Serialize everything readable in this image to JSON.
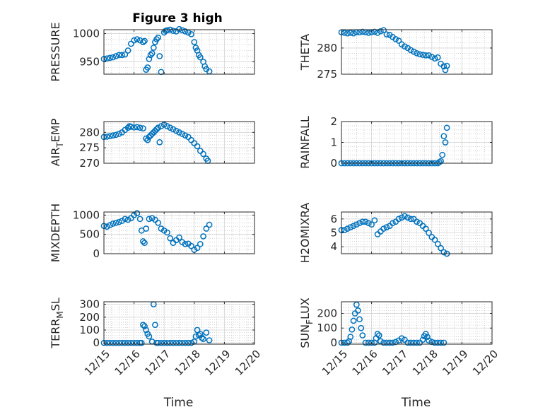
{
  "figure_title": "Figure 3 high",
  "colors": {
    "marker": "#0072BD",
    "axis": "#262626",
    "grid": "#b8b8b8"
  },
  "chart_data": [
    {
      "type": "scatter",
      "ylabel": "PRESSURE",
      "ylabel_sub": null,
      "ylabel_tail": null,
      "ylim": [
        928,
        1007
      ],
      "yticks": [
        950,
        1000
      ],
      "xticks": [
        "12/15",
        "12/16",
        "12/17",
        "12/18",
        "12/19",
        "12/20"
      ],
      "xlabel": "",
      "title": "Figure 3 high",
      "x": [
        0.0,
        0.1,
        0.2,
        0.3,
        0.4,
        0.5,
        0.6,
        0.7,
        0.8,
        0.9,
        1.0,
        1.1,
        1.2,
        1.3,
        1.35,
        1.4,
        1.45,
        1.5,
        1.55,
        1.6,
        1.65,
        1.7,
        1.75,
        1.8,
        1.85,
        1.9,
        2.0,
        2.05,
        2.1,
        2.2,
        2.3,
        2.4,
        2.5,
        2.6,
        2.7,
        2.8,
        2.9,
        3.0,
        3.05,
        3.1,
        3.15,
        3.2,
        3.3,
        3.35,
        3.4,
        3.5
      ],
      "y": [
        955,
        956,
        957,
        958,
        960,
        962,
        962,
        963,
        970,
        982,
        988,
        990,
        988,
        985,
        987,
        936,
        940,
        955,
        962,
        965,
        975,
        985,
        990,
        993,
        960,
        932,
        1002,
        1005,
        1006,
        1007,
        1005,
        1004,
        1008,
        1006,
        1004,
        1002,
        999,
        985,
        975,
        970,
        962,
        958,
        950,
        942,
        937,
        933
      ]
    },
    {
      "type": "scatter",
      "ylabel": "THETA",
      "ylabel_sub": null,
      "ylabel_tail": null,
      "ylim": [
        275,
        283.5
      ],
      "yticks": [
        275,
        280
      ],
      "xticks": [
        "12/15",
        "12/16",
        "12/17",
        "12/18",
        "12/19",
        "12/20"
      ],
      "xlabel": "",
      "title": "",
      "x": [
        0.0,
        0.1,
        0.2,
        0.3,
        0.4,
        0.5,
        0.6,
        0.7,
        0.8,
        0.9,
        1.0,
        1.1,
        1.2,
        1.3,
        1.4,
        1.5,
        1.6,
        1.7,
        1.8,
        1.9,
        2.0,
        2.1,
        2.2,
        2.3,
        2.4,
        2.5,
        2.6,
        2.7,
        2.8,
        2.9,
        3.0,
        3.1,
        3.2,
        3.3,
        3.4,
        3.45,
        3.5
      ],
      "y": [
        283.0,
        282.9,
        282.8,
        282.9,
        282.8,
        283.0,
        283.0,
        283.1,
        283.0,
        282.9,
        283.0,
        283.1,
        282.9,
        283.2,
        283.4,
        282.6,
        282.5,
        282.1,
        281.7,
        281.4,
        280.7,
        280.3,
        280.0,
        279.6,
        279.3,
        279.0,
        278.8,
        278.7,
        278.6,
        278.6,
        278.3,
        278.0,
        278.2,
        277.0,
        276.5,
        275.8,
        276.6
      ]
    },
    {
      "type": "scatter",
      "ylabel": "AIR",
      "ylabel_sub": "T",
      "ylabel_tail": "EMP",
      "ylim": [
        270,
        283.5
      ],
      "yticks": [
        270,
        275,
        280
      ],
      "xticks": [
        "12/15",
        "12/16",
        "12/17",
        "12/18",
        "12/19",
        "12/20"
      ],
      "xlabel": "",
      "title": "",
      "x": [
        0.0,
        0.1,
        0.2,
        0.3,
        0.4,
        0.5,
        0.6,
        0.7,
        0.8,
        0.85,
        0.9,
        1.0,
        1.1,
        1.2,
        1.3,
        1.4,
        1.45,
        1.5,
        1.55,
        1.6,
        1.65,
        1.7,
        1.75,
        1.8,
        1.85,
        1.9,
        2.0,
        2.1,
        2.2,
        2.3,
        2.4,
        2.5,
        2.6,
        2.7,
        2.8,
        2.9,
        3.0,
        3.1,
        3.2,
        3.3,
        3.4,
        3.45
      ],
      "y": [
        278.5,
        278.6,
        278.8,
        279.0,
        279.2,
        279.5,
        280.0,
        280.8,
        281.5,
        282.0,
        281.8,
        281.6,
        281.7,
        281.5,
        281.3,
        278.0,
        277.5,
        278.5,
        279.0,
        279.5,
        280.0,
        280.5,
        281.0,
        281.5,
        276.8,
        282.0,
        282.5,
        282.0,
        281.5,
        281.0,
        280.5,
        280.0,
        279.5,
        279.0,
        278.5,
        277.5,
        276.5,
        275.5,
        274.0,
        273.0,
        271.5,
        270.8
      ]
    },
    {
      "type": "scatter",
      "ylabel": "RAINFALL",
      "ylabel_sub": null,
      "ylabel_tail": null,
      "ylim": [
        0,
        2
      ],
      "yticks": [
        0,
        1,
        2
      ],
      "xticks": [
        "12/15",
        "12/16",
        "12/17",
        "12/18",
        "12/19",
        "12/20"
      ],
      "xlabel": "",
      "title": "",
      "x": [
        0.0,
        0.1,
        0.2,
        0.3,
        0.4,
        0.5,
        0.6,
        0.7,
        0.8,
        0.9,
        1.0,
        1.1,
        1.2,
        1.3,
        1.4,
        1.5,
        1.6,
        1.7,
        1.8,
        1.9,
        2.0,
        2.1,
        2.2,
        2.3,
        2.4,
        2.5,
        2.6,
        2.7,
        2.8,
        2.9,
        3.0,
        3.1,
        3.2,
        3.25,
        3.3,
        3.35,
        3.4,
        3.45,
        3.5
      ],
      "y": [
        0,
        0,
        0,
        0,
        0,
        0,
        0,
        0,
        0,
        0,
        0,
        0,
        0,
        0,
        0,
        0,
        0,
        0,
        0,
        0,
        0,
        0,
        0,
        0,
        0,
        0,
        0,
        0,
        0,
        0,
        0,
        0,
        0,
        0.05,
        0.1,
        0.4,
        1.3,
        1.0,
        1.7
      ]
    },
    {
      "type": "scatter",
      "ylabel": "MIXDEPTH",
      "ylabel_sub": null,
      "ylabel_tail": null,
      "ylim": [
        0,
        1080
      ],
      "yticks": [
        0,
        500,
        1000
      ],
      "xticks": [
        "12/15",
        "12/16",
        "12/17",
        "12/18",
        "12/19",
        "12/20"
      ],
      "xlabel": "",
      "title": "",
      "x": [
        0.0,
        0.1,
        0.2,
        0.3,
        0.4,
        0.5,
        0.6,
        0.7,
        0.8,
        0.9,
        1.0,
        1.1,
        1.2,
        1.25,
        1.3,
        1.35,
        1.4,
        1.5,
        1.6,
        1.7,
        1.8,
        1.9,
        2.0,
        2.1,
        2.2,
        2.3,
        2.4,
        2.5,
        2.6,
        2.7,
        2.8,
        2.9,
        3.0,
        3.1,
        3.2,
        3.3,
        3.4,
        3.5
      ],
      "y": [
        720,
        700,
        740,
        780,
        800,
        820,
        850,
        900,
        880,
        920,
        1000,
        1050,
        900,
        600,
        320,
        280,
        650,
        900,
        920,
        880,
        800,
        650,
        600,
        550,
        400,
        280,
        350,
        420,
        300,
        250,
        260,
        200,
        100,
        150,
        250,
        450,
        650,
        750
      ]
    },
    {
      "type": "scatter",
      "ylabel": "H2OMIXRA",
      "ylabel_sub": null,
      "ylabel_tail": null,
      "ylim": [
        3.5,
        6.5
      ],
      "yticks": [
        4,
        5,
        6
      ],
      "xticks": [
        "12/15",
        "12/16",
        "12/17",
        "12/18",
        "12/19",
        "12/20"
      ],
      "xlabel": "",
      "title": "",
      "x": [
        0.0,
        0.1,
        0.2,
        0.3,
        0.4,
        0.5,
        0.6,
        0.7,
        0.8,
        0.9,
        1.0,
        1.1,
        1.2,
        1.3,
        1.4,
        1.5,
        1.6,
        1.7,
        1.8,
        1.9,
        2.0,
        2.1,
        2.2,
        2.3,
        2.4,
        2.5,
        2.6,
        2.7,
        2.8,
        2.9,
        3.0,
        3.1,
        3.2,
        3.3,
        3.4,
        3.5
      ],
      "y": [
        5.2,
        5.2,
        5.3,
        5.4,
        5.5,
        5.6,
        5.7,
        5.8,
        5.8,
        5.7,
        5.6,
        5.9,
        4.9,
        5.1,
        5.3,
        5.4,
        5.5,
        5.7,
        5.8,
        6.0,
        6.1,
        6.2,
        6.1,
        6.0,
        6.0,
        5.8,
        5.7,
        5.5,
        5.3,
        5.0,
        4.7,
        4.5,
        4.2,
        3.9,
        3.6,
        3.5
      ]
    },
    {
      "type": "scatter",
      "ylabel": "TERR",
      "ylabel_sub": "M",
      "ylabel_tail": "SL",
      "ylim": [
        -10,
        320
      ],
      "yticks": [
        0,
        100,
        200,
        300
      ],
      "xticks": [
        "12/15",
        "12/16",
        "12/17",
        "12/18",
        "12/19",
        "12/20"
      ],
      "xlabel": "Time",
      "title": "",
      "x": [
        0.0,
        0.1,
        0.2,
        0.3,
        0.4,
        0.5,
        0.6,
        0.7,
        0.8,
        0.9,
        1.0,
        1.1,
        1.2,
        1.25,
        1.3,
        1.35,
        1.4,
        1.45,
        1.5,
        1.6,
        1.65,
        1.7,
        1.75,
        1.8,
        1.9,
        2.0,
        2.1,
        2.2,
        2.3,
        2.4,
        2.5,
        2.6,
        2.7,
        2.8,
        2.9,
        3.0,
        3.05,
        3.1,
        3.15,
        3.2,
        3.25,
        3.3,
        3.4,
        3.5
      ],
      "y": [
        0,
        0,
        0,
        0,
        0,
        0,
        0,
        0,
        0,
        0,
        0,
        0,
        0,
        0,
        140,
        130,
        100,
        70,
        50,
        10,
        300,
        140,
        0,
        0,
        0,
        0,
        0,
        0,
        0,
        0,
        0,
        0,
        0,
        0,
        0,
        10,
        50,
        100,
        60,
        70,
        40,
        30,
        80,
        20
      ]
    },
    {
      "type": "scatter",
      "ylabel": "SUN",
      "ylabel_sub": "F",
      "ylabel_tail": "LUX",
      "ylim": [
        -10,
        280
      ],
      "yticks": [
        0,
        100,
        200
      ],
      "xticks": [
        "12/15",
        "12/16",
        "12/17",
        "12/18",
        "12/19",
        "12/20"
      ],
      "xlabel": "Time",
      "title": "",
      "x": [
        0.0,
        0.1,
        0.2,
        0.25,
        0.3,
        0.35,
        0.4,
        0.45,
        0.5,
        0.55,
        0.6,
        0.65,
        0.7,
        0.8,
        0.9,
        1.0,
        1.1,
        1.15,
        1.2,
        1.25,
        1.3,
        1.4,
        1.5,
        1.6,
        1.7,
        1.8,
        1.9,
        2.0,
        2.1,
        2.2,
        2.3,
        2.4,
        2.5,
        2.6,
        2.7,
        2.75,
        2.8,
        2.85,
        2.9,
        3.0,
        3.1,
        3.2,
        3.3,
        3.4
      ],
      "y": [
        0,
        0,
        0,
        10,
        40,
        90,
        150,
        200,
        260,
        220,
        160,
        100,
        50,
        0,
        0,
        0,
        0,
        30,
        60,
        50,
        10,
        0,
        0,
        0,
        0,
        5,
        15,
        30,
        20,
        0,
        0,
        0,
        0,
        0,
        20,
        45,
        60,
        40,
        15,
        5,
        0,
        0,
        0,
        0
      ]
    }
  ]
}
